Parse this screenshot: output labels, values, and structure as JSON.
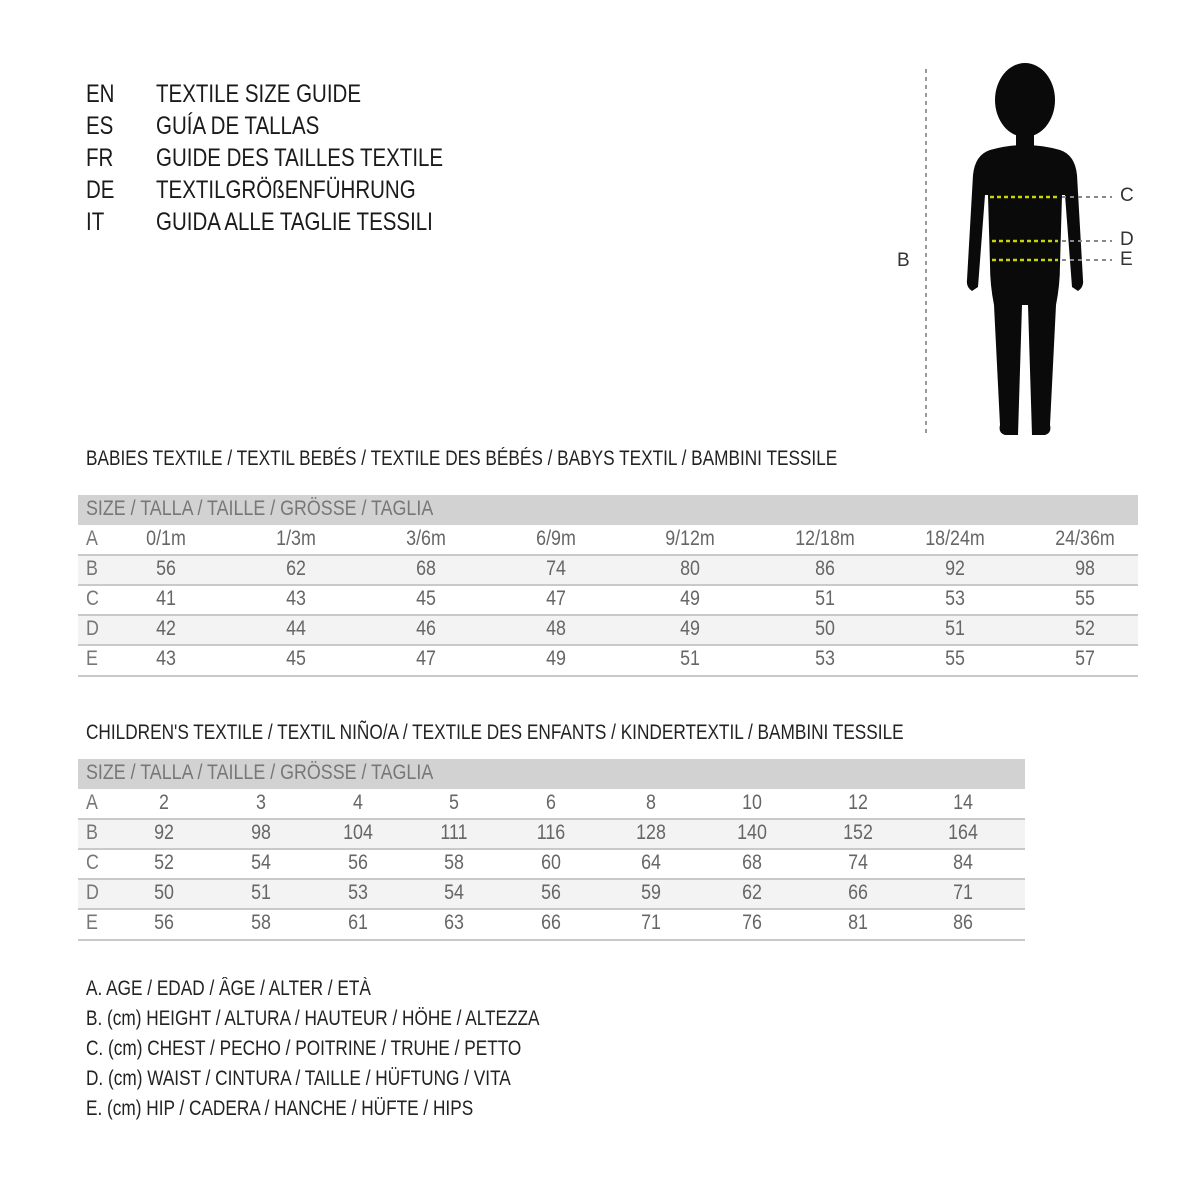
{
  "header": [
    {
      "code": "EN",
      "text": "TEXTILE SIZE GUIDE"
    },
    {
      "code": "ES",
      "text": "GUÍA DE TALLAS"
    },
    {
      "code": "FR",
      "text": "GUIDE DES TAILLES TEXTILE"
    },
    {
      "code": "DE",
      "text": "TEXTILGRÖßENFÜHRUNG"
    },
    {
      "code": "IT",
      "text": "GUIDA ALLE TAGLIE TESSILI"
    }
  ],
  "figure": {
    "labels": {
      "b": "B",
      "c": "C",
      "d": "D",
      "e": "E"
    },
    "measure_line_color": "#c8d400",
    "icon": "child-silhouette"
  },
  "babies": {
    "title": "BABIES TEXTILE / TEXTIL BEBÉS / TEXTILE DES BÉBÉS / BABYS TEXTIL  / BAMBINI TESSILE",
    "size_header": "SIZE / TALLA / TAILLE / GRÖSSE / TAGLIA",
    "rows": [
      {
        "label": "A",
        "values": [
          "0/1m",
          "1/3m",
          "3/6m",
          "6/9m",
          "9/12m",
          "12/18m",
          "18/24m",
          "24/36m"
        ]
      },
      {
        "label": "B",
        "values": [
          "56",
          "62",
          "68",
          "74",
          "80",
          "86",
          "92",
          "98"
        ]
      },
      {
        "label": "C",
        "values": [
          "41",
          "43",
          "45",
          "47",
          "49",
          "51",
          "53",
          "55"
        ]
      },
      {
        "label": "D",
        "values": [
          "42",
          "44",
          "46",
          "48",
          "49",
          "50",
          "51",
          "52"
        ]
      },
      {
        "label": "E",
        "values": [
          "43",
          "45",
          "47",
          "49",
          "51",
          "53",
          "55",
          "57"
        ]
      }
    ]
  },
  "children": {
    "title": "CHILDREN'S TEXTILE / TEXTIL NIÑO/A / TEXTILE DES ENFANTS / KINDERTEXTIL / BAMBINI TESSILE",
    "size_header": "SIZE / TALLA / TAILLE / GRÖSSE / TAGLIA",
    "rows": [
      {
        "label": "A",
        "values": [
          "2",
          "3",
          "4",
          "5",
          "6",
          "8",
          "10",
          "12",
          "14"
        ]
      },
      {
        "label": "B",
        "values": [
          "92",
          "98",
          "104",
          "111",
          "116",
          "128",
          "140",
          "152",
          "164"
        ]
      },
      {
        "label": "C",
        "values": [
          "52",
          "54",
          "56",
          "58",
          "60",
          "64",
          "68",
          "74",
          "84"
        ]
      },
      {
        "label": "D",
        "values": [
          "50",
          "51",
          "53",
          "54",
          "56",
          "59",
          "62",
          "66",
          "71"
        ]
      },
      {
        "label": "E",
        "values": [
          "56",
          "58",
          "61",
          "63",
          "66",
          "71",
          "76",
          "81",
          "86"
        ]
      }
    ]
  },
  "legend": [
    "A. AGE / EDAD / ÂGE / ALTER / ETÀ",
    "B. (cm) HEIGHT / ALTURA / HAUTEUR / HÖHE / ALTEZZA",
    "C. (cm) CHEST / PECHO / POITRINE / TRUHE / PETTO",
    "D. (cm) WAIST / CINTURA / TAILLE / HÜFTUNG / VITA",
    "E. (cm) HIP / CADERA / HANCHE / HÜFTE / HIPS"
  ]
}
